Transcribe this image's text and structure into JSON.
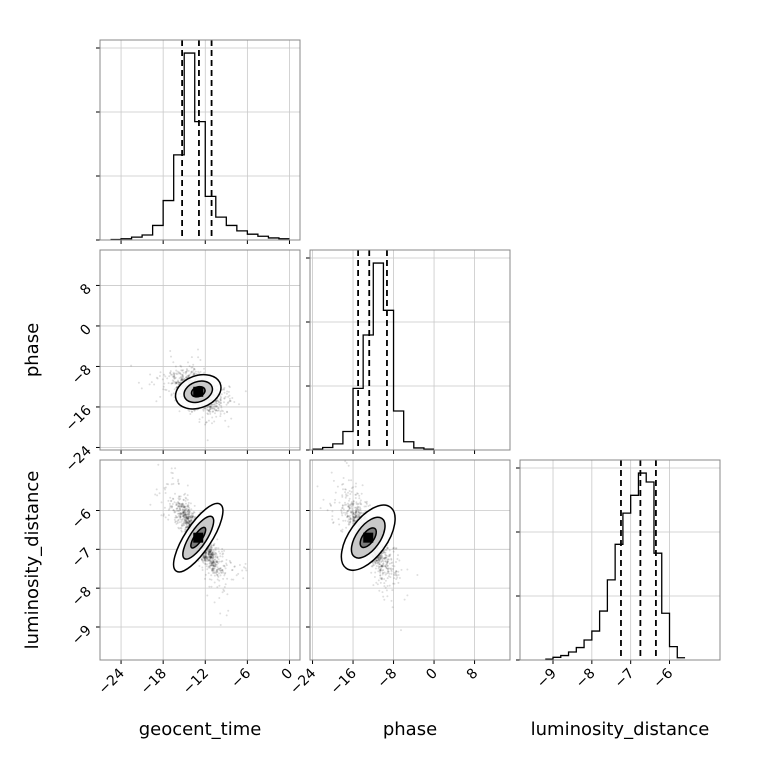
{
  "chart_data": {
    "type": "corner",
    "parameters": [
      "geocent_time",
      "phase",
      "luminosity_distance"
    ],
    "axis_labels": {
      "geocent_time": "geocent_time",
      "phase": "phase",
      "luminosity_distance": "luminosity_distance"
    },
    "ranges": {
      "geocent_time": [
        -27,
        1.5
      ],
      "phase": [
        -24.5,
        15
      ],
      "luminosity_distance": [
        -9.85,
        -4.7
      ]
    },
    "ticks": {
      "geocent_time": [
        {
          "value": -24,
          "label": "−24"
        },
        {
          "value": -18,
          "label": "−18"
        },
        {
          "value": -12,
          "label": "−12"
        },
        {
          "value": -6,
          "label": "−6"
        },
        {
          "value": 0,
          "label": "0"
        }
      ],
      "phase": [
        {
          "value": -24,
          "label": "−24"
        },
        {
          "value": -16,
          "label": "−16"
        },
        {
          "value": -8,
          "label": "−8"
        },
        {
          "value": 0,
          "label": "0"
        },
        {
          "value": 8,
          "label": "8"
        }
      ],
      "luminosity_distance": [
        {
          "value": -9,
          "label": "−9"
        },
        {
          "value": -8,
          "label": "−8"
        },
        {
          "value": -7,
          "label": "−7"
        },
        {
          "value": -6,
          "label": "−6"
        }
      ]
    },
    "quantiles": {
      "geocent_time": [
        -15.3,
        -12.9,
        -11.1
      ],
      "phase": [
        -15.0,
        -12.8,
        -9.3
      ],
      "luminosity_distance": [
        -7.25,
        -6.75,
        -6.35
      ]
    },
    "histograms": {
      "geocent_time": {
        "edges": [
          -25.5,
          -24,
          -22.5,
          -21,
          -19.5,
          -18,
          -16.5,
          -15,
          -13.5,
          -12,
          -10.5,
          -9,
          -7.5,
          -6,
          -4.5,
          -3,
          -1.5,
          0
        ],
        "counts": [
          1,
          3,
          7,
          12,
          35,
          95,
          205,
          450,
          285,
          105,
          55,
          35,
          22,
          14,
          9,
          5,
          3
        ]
      },
      "phase": {
        "edges": [
          -24,
          -22,
          -20,
          -18,
          -16,
          -14,
          -12,
          -10,
          -8,
          -6,
          -4,
          -2,
          0
        ],
        "counts": [
          2,
          6,
          15,
          45,
          150,
          280,
          455,
          340,
          95,
          20,
          5,
          2
        ]
      },
      "luminosity_distance": {
        "edges": [
          -9.2,
          -9.0,
          -8.8,
          -8.6,
          -8.4,
          -8.2,
          -8.0,
          -7.8,
          -7.6,
          -7.4,
          -7.2,
          -7.0,
          -6.8,
          -6.6,
          -6.4,
          -6.2,
          -6.0,
          -5.8,
          -5.6
        ],
        "counts": [
          2,
          6,
          10,
          18,
          28,
          45,
          65,
          110,
          180,
          260,
          330,
          370,
          420,
          400,
          240,
          105,
          30,
          5
        ]
      }
    },
    "pairs": [
      {
        "x": "geocent_time",
        "y": "phase",
        "peak": [
          -13,
          -13
        ],
        "contour_levels": 3
      },
      {
        "x": "geocent_time",
        "y": "luminosity_distance",
        "peak": [
          -13,
          -6.7
        ],
        "contour_levels": 3
      },
      {
        "x": "phase",
        "y": "luminosity_distance",
        "peak": [
          -13,
          -6.7
        ],
        "contour_levels": 3
      }
    ],
    "grid": true
  }
}
